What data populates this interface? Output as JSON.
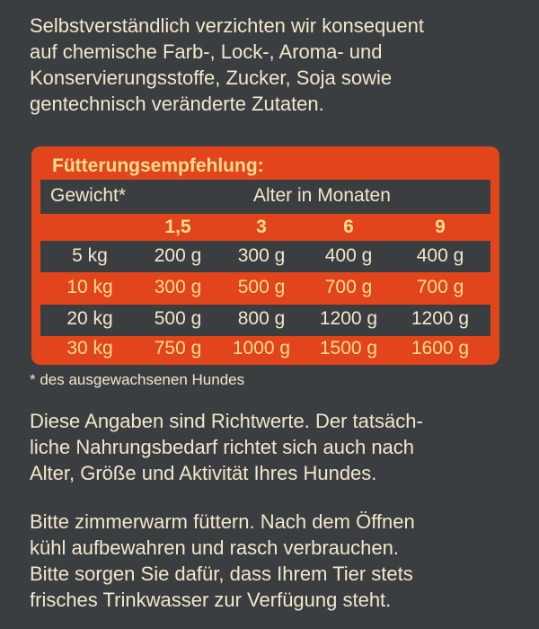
{
  "intro": [
    "Selbstverständlich verzichten wir konsequent",
    "auf chemische Farb-, Lock-, Aroma- und",
    "Konservierungsstoffe, Zucker, Soja sowie",
    "gentechnisch veränderte Zutaten."
  ],
  "table": {
    "title": "Fütterungsempfehlung:",
    "weight_header": "Gewicht*",
    "age_header": "Alter in Monaten",
    "ages": [
      "1,5",
      "3",
      "6",
      "9"
    ],
    "rows": [
      [
        "5 kg",
        "200 g",
        "300 g",
        "400 g",
        "400 g"
      ],
      [
        "10 kg",
        "300 g",
        "500 g",
        "700 g",
        "700 g"
      ],
      [
        "20 kg",
        "500 g",
        "800 g",
        "1200 g",
        "1200 g"
      ],
      [
        "30 kg",
        "750 g",
        "1000 g",
        "1500 g",
        "1600 g"
      ]
    ]
  },
  "footnote": "* des ausgewachsenen Hundes",
  "paragraphs": [
    [
      "Diese Angaben sind Richtwerte. Der tatsäch-",
      "liche Nahrungsbedarf richtet sich auch nach",
      "Alter, Größe und Aktivität Ihres Hundes."
    ],
    [
      "Bitte zimmerwarm füttern. Nach dem Öffnen",
      "kühl aufbewahren und rasch verbrauchen.",
      "Bitte sorgen Sie dafür, dass Ihrem Tier stets",
      "frisches Trinkwasser zur Verfügung steht."
    ]
  ]
}
